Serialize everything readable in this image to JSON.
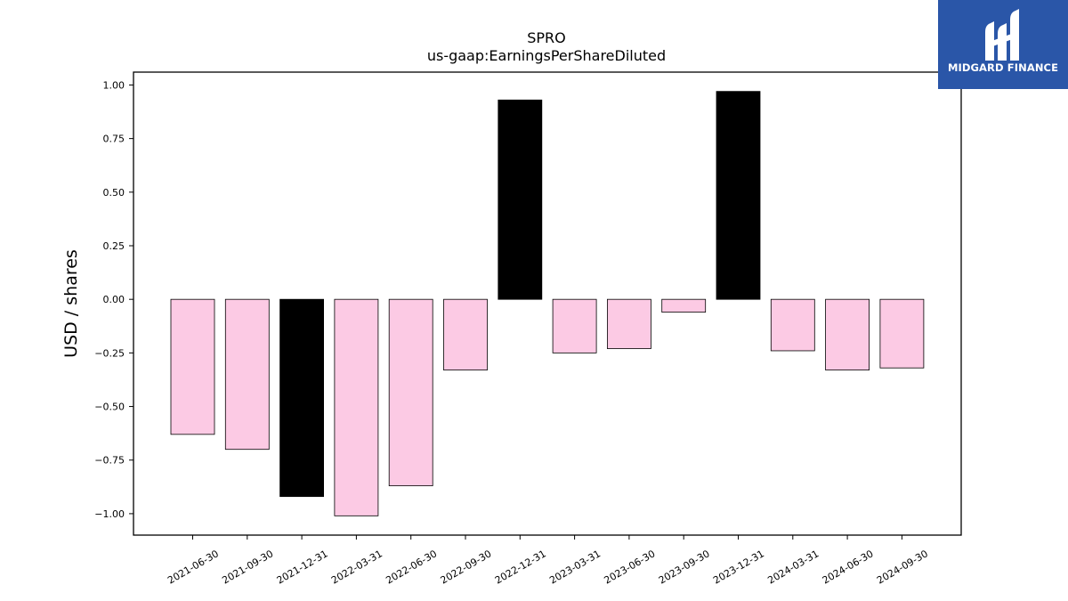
{
  "chart_data": {
    "type": "bar",
    "title": "SPRO",
    "subtitle": "us-gaap:EarningsPerShareDiluted",
    "xlabel": "",
    "ylabel": "USD / shares",
    "ylim": [
      -1.1,
      1.06
    ],
    "yticks": [
      1.0,
      0.75,
      0.5,
      0.25,
      0.0,
      -0.25,
      -0.5,
      -0.75,
      -1.0
    ],
    "ytick_labels": [
      "1.00",
      "0.75",
      "0.50",
      "0.25",
      "0.00",
      "−0.25",
      "−0.50",
      "−0.75",
      "−1.00"
    ],
    "categories": [
      "2021-06-30",
      "2021-09-30",
      "2021-12-31",
      "2022-03-31",
      "2022-06-30",
      "2022-09-30",
      "2022-12-31",
      "2023-03-31",
      "2023-06-30",
      "2023-09-30",
      "2023-12-31",
      "2024-03-31",
      "2024-06-30",
      "2024-09-30"
    ],
    "values": [
      -0.63,
      -0.7,
      -0.92,
      -1.01,
      -0.87,
      -0.33,
      0.93,
      -0.25,
      -0.23,
      -0.06,
      0.97,
      -0.24,
      -0.33,
      -0.32
    ],
    "bar_colors": [
      "#fccae4",
      "#fccae4",
      "#000000",
      "#fccae4",
      "#fccae4",
      "#fccae4",
      "#000000",
      "#fccae4",
      "#fccae4",
      "#fccae4",
      "#000000",
      "#fccae4",
      "#fccae4",
      "#fccae4"
    ],
    "grid": false,
    "legend": "none"
  },
  "logo": {
    "text": "MIDGARD FINANCE",
    "background": "#2a56a8"
  }
}
